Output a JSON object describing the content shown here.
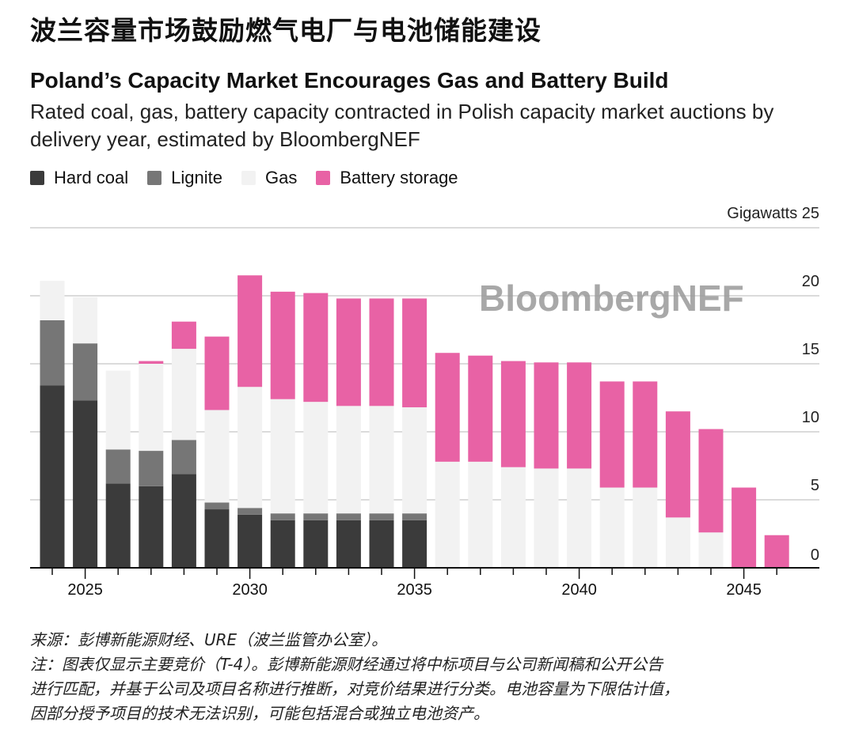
{
  "header": {
    "cn_title": "波兰容量市场鼓励燃气电厂与电池储能建设",
    "title": "Poland’s Capacity Market Encourages Gas and Battery Build",
    "subtitle": "Rated coal, gas, battery capacity contracted in Polish capacity market auctions by delivery year, estimated by BloombergNEF"
  },
  "watermark": "BloombergNEF",
  "chart_data": {
    "type": "bar",
    "stacked": true,
    "categories": [
      2024,
      2025,
      2026,
      2027,
      2028,
      2029,
      2030,
      2031,
      2032,
      2033,
      2034,
      2035,
      2036,
      2037,
      2038,
      2039,
      2040,
      2041,
      2042,
      2043,
      2044,
      2045,
      2046
    ],
    "series": [
      {
        "name": "Hard coal",
        "color": "#3b3b3b",
        "values": [
          13.4,
          12.3,
          6.2,
          6.0,
          6.9,
          4.3,
          3.9,
          3.5,
          3.5,
          3.5,
          3.5,
          3.5,
          0,
          0,
          0,
          0,
          0,
          0,
          0,
          0,
          0,
          0,
          0
        ]
      },
      {
        "name": "Lignite",
        "color": "#767676",
        "values": [
          4.8,
          4.2,
          2.5,
          2.6,
          2.5,
          0.5,
          0.5,
          0.5,
          0.5,
          0.5,
          0.5,
          0.5,
          0,
          0,
          0,
          0,
          0,
          0,
          0,
          0,
          0,
          0,
          0
        ]
      },
      {
        "name": "Gas",
        "color": "#f2f2f2",
        "values": [
          2.9,
          3.4,
          5.8,
          6.4,
          6.7,
          6.8,
          8.9,
          8.4,
          8.2,
          7.9,
          7.9,
          7.8,
          7.8,
          7.8,
          7.4,
          7.3,
          7.3,
          5.9,
          5.9,
          3.7,
          2.6,
          0,
          0
        ]
      },
      {
        "name": "Battery storage",
        "color": "#e862a5",
        "values": [
          0,
          0,
          0,
          0.2,
          2.0,
          5.4,
          8.2,
          7.9,
          8.0,
          7.9,
          7.9,
          8.0,
          8.0,
          7.8,
          7.8,
          7.8,
          7.8,
          7.8,
          7.8,
          7.8,
          7.6,
          5.9,
          2.4
        ]
      }
    ],
    "ylabel": "Gigawatts",
    "ylim": [
      0,
      25
    ],
    "yticks": [
      "0",
      "5",
      "10",
      "15",
      "20",
      "25"
    ],
    "xtick_labels": [
      "2025",
      "2030",
      "2035",
      "2040",
      "2045"
    ],
    "grid": true,
    "legend": "top-left",
    "y_axis_side": "right"
  },
  "notes": {
    "source": "来源：彭博新能源财经、URE（波兰监管办公室）。",
    "note_lines": [
      "注：图表仅显示主要竞价（T-4）。彭博新能源财经通过将中标项目与公司新闻稿和公开公告",
      "进行匹配，并基于公司及项目名称进行推断，对竞价结果进行分类。电池容量为下限估计值，",
      "因部分授予项目的技术无法识别，可能包括混合或独立电池资产。"
    ]
  }
}
